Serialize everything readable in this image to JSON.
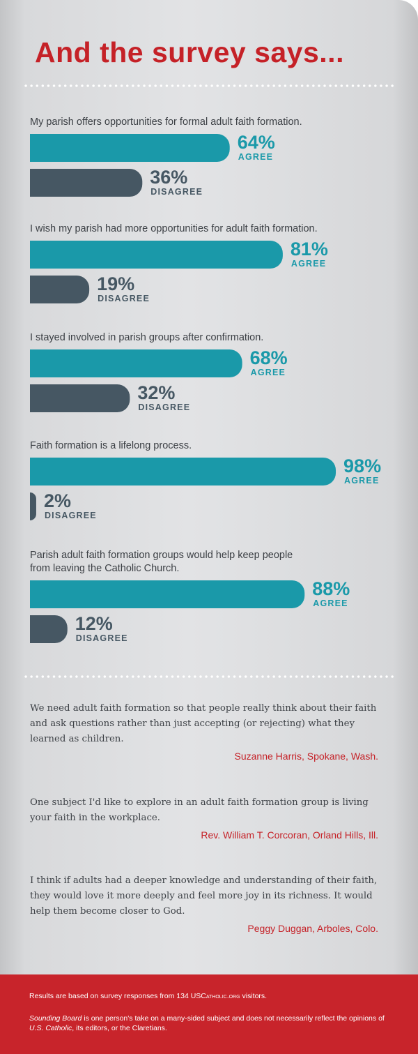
{
  "title": "And the survey says...",
  "colors": {
    "accent": "#c52127",
    "agree": "#1a99a9",
    "disagree": "#465763",
    "footer": "#c8242b"
  },
  "chart_data": {
    "type": "bar",
    "orientation": "horizontal",
    "xlim": [
      0,
      100
    ],
    "unit": "%",
    "questions": [
      {
        "lines": [
          "My parish offers opportunities for formal adult faith formation."
        ],
        "agree": 64,
        "disagree": 36,
        "agree_label": "64%",
        "disagree_label": "36%",
        "agree_caption": "AGREE",
        "disagree_caption": "DISAGREE"
      },
      {
        "lines": [
          "I wish my parish had more opportunities for adult faith formation."
        ],
        "agree": 81,
        "disagree": 19,
        "agree_label": "81%",
        "disagree_label": "19%",
        "agree_caption": "AGREE",
        "disagree_caption": "DISAGREE"
      },
      {
        "lines": [
          "I stayed involved in parish groups after confirmation."
        ],
        "agree": 68,
        "disagree": 32,
        "agree_label": "68%",
        "disagree_label": "32%",
        "agree_caption": "AGREE",
        "disagree_caption": "DISAGREE"
      },
      {
        "lines": [
          "Faith formation is a lifelong process."
        ],
        "agree": 98,
        "disagree": 2,
        "agree_label": "98%",
        "disagree_label": "2%",
        "agree_caption": "AGREE",
        "disagree_caption": "DISAGREE"
      },
      {
        "lines": [
          "Parish adult faith formation groups would help keep people",
          "from leaving the Catholic Church."
        ],
        "agree": 88,
        "disagree": 12,
        "agree_label": "88%",
        "disagree_label": "12%",
        "agree_caption": "AGREE",
        "disagree_caption": "DISAGREE"
      }
    ]
  },
  "quotes": [
    {
      "text": "We need adult faith formation so that people really think about their faith and ask questions rather than just accepting (or rejecting) what they learned as children.",
      "author": "Suzanne Harris, Spokane, Wash."
    },
    {
      "text": "One subject I'd like to explore in an adult faith formation group is living your faith in the workplace.",
      "author": "Rev. William T. Corcoran, Orland Hills, Ill."
    },
    {
      "text": "I think if adults had a deeper knowledge and understanding of their faith, they would love it more deeply and feel more joy in its richness. It would help them become closer to God.",
      "author": "Peggy Duggan, Arboles, Colo."
    }
  ],
  "footer": {
    "results_prefix": "Results are based on survey responses from 134 US",
    "results_site": "Catholic.org",
    "results_suffix": " visitors.",
    "sb_name": "Sounding Board",
    "sb_mid": " is one person's take on a many-sided subject and does not necessarily reflect the opinions of ",
    "sb_pub": "U.S. Catholic",
    "sb_end": ", its editors, or the Claretians."
  }
}
